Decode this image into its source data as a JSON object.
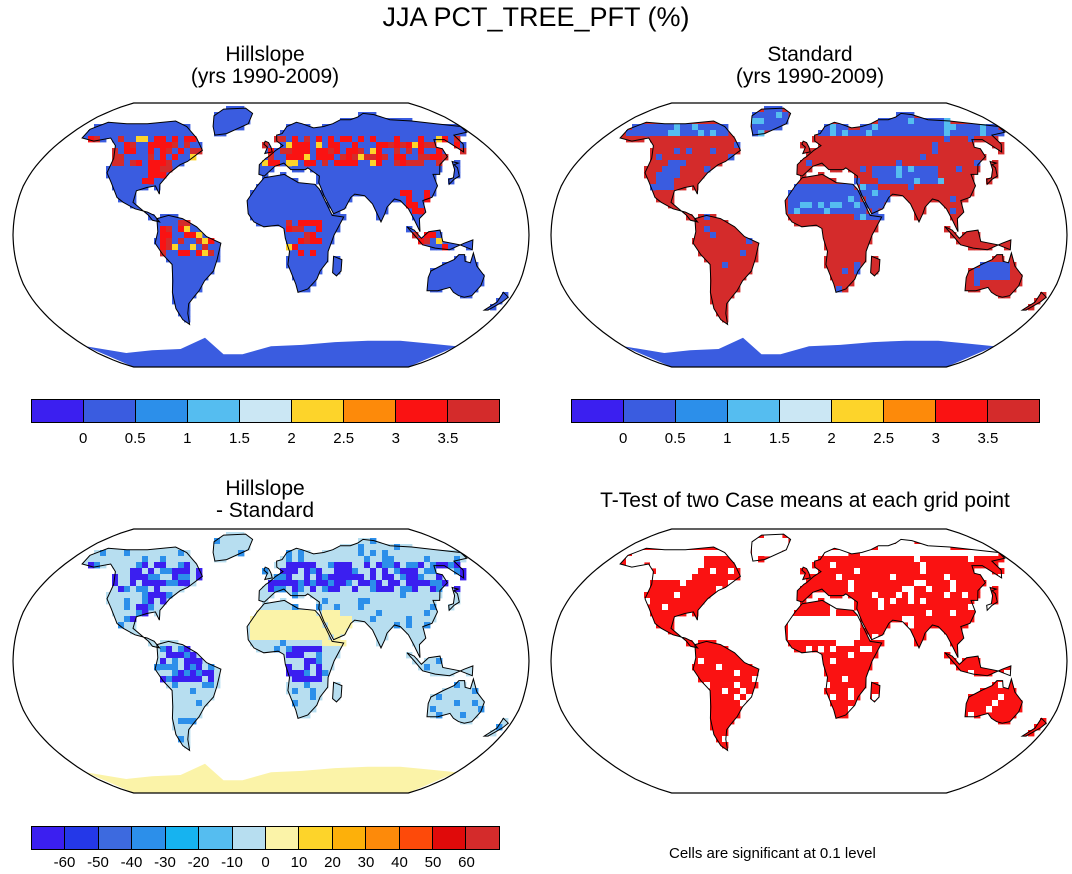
{
  "title": "JJA PCT_TREE_PFT (%)",
  "panels": [
    {
      "id": "hillslope",
      "title_line1": "Hillslope",
      "title_line2": "(yrs 1990-2009)"
    },
    {
      "id": "standard",
      "title_line1": "Standard",
      "title_line2": "(yrs 1990-2009)"
    },
    {
      "id": "difference",
      "title_line1": "Hillslope",
      "title_line2": "- Standard"
    },
    {
      "id": "ttest",
      "title_line1": "T-Test of two Case means at each grid point",
      "title_line2": ""
    }
  ],
  "colorbars": {
    "abs": {
      "colors": [
        "#3b1ff0",
        "#3a5ce0",
        "#2c8fea",
        "#55bdf0",
        "#cbe7f4",
        "#fdd42a",
        "#fd8a0a",
        "#fa1212",
        "#d42b2b"
      ],
      "labels": [
        "0",
        "0.5",
        "1",
        "1.5",
        "2",
        "2.5",
        "3",
        "3.5"
      ]
    },
    "diff": {
      "colors": [
        "#3b1ff0",
        "#2438e8",
        "#3d6adf",
        "#2c8fea",
        "#16b3f0",
        "#55bdf0",
        "#b7def0",
        "#fbf3a8",
        "#fdd42a",
        "#fdb00a",
        "#fd8a0a",
        "#fd4a0a",
        "#e00a0a",
        "#d42b2b"
      ],
      "labels": [
        "-60",
        "-50",
        "-40",
        "-30",
        "-20",
        "-10",
        "0",
        "10",
        "20",
        "30",
        "40",
        "50",
        "60"
      ]
    }
  },
  "significance_note": "Cells are significant at 0.1 level",
  "map_fills": {
    "hillslope": {
      "ocean": "#ffffff",
      "land": "#3a5ce0",
      "antarctica": "#3a5ce0",
      "forest": "#fa1212",
      "hot": "#d42b2b",
      "warm": "#fdd42a"
    },
    "standard": {
      "ocean": "#ffffff",
      "land": "#d42b2b",
      "antarctica": "#3a5ce0",
      "sparse": "#3a5ce0",
      "mid": "#55bdf0"
    },
    "difference": {
      "ocean": "#ffffff",
      "land": "#b7def0",
      "antarctica": "#fbf3a8",
      "desert": "#fbf3a8",
      "strong": "#3b1ff0",
      "mid": "#2c8fea"
    },
    "ttest": {
      "ocean": "#ffffff",
      "land": "#fa1212",
      "antarctica": "#ffffff",
      "gap": "#ffffff"
    }
  }
}
